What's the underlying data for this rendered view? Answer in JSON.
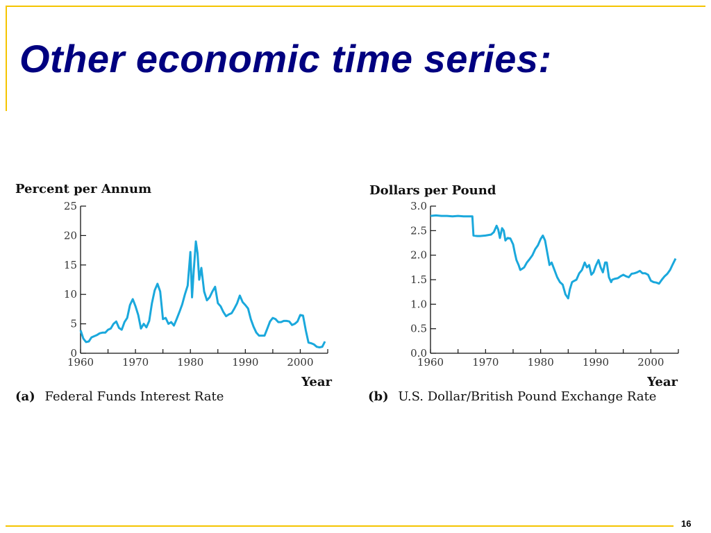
{
  "slide": {
    "title": "Other economic time series:",
    "page_number": "16",
    "accent_color": "#f5c400",
    "title_color": "#000080"
  },
  "chart_data": [
    {
      "type": "line",
      "ylabel": "Percent per Annum",
      "xlabel": "Year",
      "caption_letter": "(a)",
      "caption": "Federal Funds Interest Rate",
      "xlim": [
        1960,
        2005
      ],
      "ylim": [
        0,
        25
      ],
      "x_ticks": [
        1960,
        1970,
        1980,
        1990,
        2000
      ],
      "y_ticks": [
        "0",
        "5",
        "10",
        "15",
        "20",
        "25"
      ],
      "line_color": "#1aa8dc",
      "grid": false,
      "x": [
        1960.0,
        1960.5,
        1961.0,
        1961.5,
        1962.0,
        1962.5,
        1963.0,
        1963.5,
        1964.0,
        1964.5,
        1965.0,
        1965.5,
        1966.0,
        1966.5,
        1967.0,
        1967.5,
        1968.0,
        1968.5,
        1969.0,
        1969.5,
        1970.0,
        1970.5,
        1971.0,
        1971.5,
        1972.0,
        1972.5,
        1973.0,
        1973.5,
        1974.0,
        1974.5,
        1975.0,
        1975.5,
        1976.0,
        1976.5,
        1977.0,
        1977.5,
        1978.0,
        1978.5,
        1979.0,
        1979.5,
        1980.0,
        1980.3,
        1980.6,
        1981.0,
        1981.3,
        1981.6,
        1982.0,
        1982.5,
        1983.0,
        1983.5,
        1984.0,
        1984.5,
        1985.0,
        1985.5,
        1986.0,
        1986.5,
        1987.0,
        1987.5,
        1988.0,
        1988.5,
        1989.0,
        1989.5,
        1990.0,
        1990.5,
        1991.0,
        1991.5,
        1992.0,
        1992.5,
        1993.0,
        1993.5,
        1994.0,
        1994.5,
        1995.0,
        1995.5,
        1996.0,
        1996.5,
        1997.0,
        1997.5,
        1998.0,
        1998.5,
        1999.0,
        1999.5,
        2000.0,
        2000.5,
        2001.0,
        2001.5,
        2002.0,
        2002.5,
        2003.0,
        2003.5,
        2004.0,
        2004.5
      ],
      "y": [
        3.9,
        2.5,
        1.9,
        2.0,
        2.7,
        2.9,
        3.1,
        3.4,
        3.5,
        3.5,
        4.0,
        4.2,
        5.0,
        5.4,
        4.3,
        4.0,
        5.3,
        6.0,
        8.2,
        9.2,
        8.0,
        6.5,
        4.2,
        5.0,
        4.4,
        5.5,
        8.5,
        10.7,
        11.8,
        10.5,
        5.8,
        6.0,
        5.0,
        5.3,
        4.7,
        5.8,
        7.0,
        8.3,
        10.0,
        11.5,
        17.2,
        9.5,
        14.0,
        19.0,
        17.0,
        12.5,
        14.5,
        10.5,
        9.0,
        9.5,
        10.5,
        11.3,
        8.5,
        8.0,
        7.0,
        6.3,
        6.6,
        6.8,
        7.6,
        8.5,
        9.8,
        8.7,
        8.2,
        7.6,
        5.8,
        4.5,
        3.5,
        3.0,
        3.0,
        3.0,
        4.2,
        5.4,
        6.0,
        5.8,
        5.3,
        5.3,
        5.5,
        5.5,
        5.4,
        4.8,
        5.0,
        5.4,
        6.5,
        6.4,
        3.9,
        1.8,
        1.7,
        1.5,
        1.1,
        1.0,
        1.1,
        2.0
      ]
    },
    {
      "type": "line",
      "ylabel": "Dollars per Pound",
      "xlabel": "Year",
      "caption_letter": "(b)",
      "caption": "U.S. Dollar/British Pound Exchange Rate",
      "xlim": [
        1960,
        2005
      ],
      "ylim": [
        0,
        3.0
      ],
      "x_ticks": [
        1960,
        1970,
        1980,
        1990,
        2000
      ],
      "y_ticks": [
        "0.0",
        "0.5",
        "1.0",
        "1.5",
        "2.0",
        "2.5",
        "3.0"
      ],
      "line_color": "#1aa8dc",
      "grid": false,
      "x": [
        1960.0,
        1961.0,
        1962.0,
        1963.0,
        1964.0,
        1965.0,
        1966.0,
        1967.0,
        1967.6,
        1967.8,
        1968.5,
        1969.0,
        1970.0,
        1971.0,
        1971.5,
        1972.0,
        1972.3,
        1972.6,
        1973.0,
        1973.3,
        1973.6,
        1974.0,
        1974.5,
        1975.0,
        1975.3,
        1975.6,
        1976.0,
        1976.3,
        1976.6,
        1977.0,
        1977.5,
        1978.0,
        1978.5,
        1979.0,
        1979.5,
        1980.0,
        1980.4,
        1980.8,
        1981.2,
        1981.6,
        1982.0,
        1982.5,
        1983.0,
        1983.5,
        1984.0,
        1984.5,
        1985.0,
        1985.3,
        1985.7,
        1986.0,
        1986.5,
        1987.0,
        1987.5,
        1988.0,
        1988.4,
        1988.8,
        1989.2,
        1989.6,
        1990.0,
        1990.5,
        1990.9,
        1991.3,
        1991.7,
        1992.0,
        1992.4,
        1992.8,
        1993.0,
        1993.5,
        1994.0,
        1994.5,
        1995.0,
        1995.5,
        1996.0,
        1996.5,
        1997.0,
        1997.5,
        1998.0,
        1998.5,
        1999.0,
        1999.5,
        2000.0,
        2000.5,
        2001.0,
        2001.5,
        2002.0,
        2002.5,
        2003.0,
        2003.5,
        2004.0,
        2004.5
      ],
      "y": [
        2.8,
        2.81,
        2.8,
        2.8,
        2.79,
        2.8,
        2.79,
        2.79,
        2.79,
        2.4,
        2.39,
        2.39,
        2.4,
        2.42,
        2.47,
        2.6,
        2.52,
        2.35,
        2.55,
        2.5,
        2.3,
        2.35,
        2.34,
        2.22,
        2.05,
        1.9,
        1.8,
        1.7,
        1.72,
        1.75,
        1.85,
        1.92,
        2.0,
        2.12,
        2.2,
        2.33,
        2.4,
        2.3,
        2.05,
        1.8,
        1.85,
        1.7,
        1.55,
        1.45,
        1.4,
        1.2,
        1.12,
        1.3,
        1.45,
        1.47,
        1.5,
        1.63,
        1.7,
        1.85,
        1.75,
        1.8,
        1.6,
        1.65,
        1.78,
        1.9,
        1.75,
        1.65,
        1.85,
        1.85,
        1.55,
        1.45,
        1.5,
        1.52,
        1.53,
        1.57,
        1.6,
        1.57,
        1.55,
        1.62,
        1.63,
        1.65,
        1.68,
        1.63,
        1.63,
        1.6,
        1.48,
        1.45,
        1.44,
        1.42,
        1.5,
        1.57,
        1.62,
        1.7,
        1.82,
        1.93
      ]
    }
  ]
}
